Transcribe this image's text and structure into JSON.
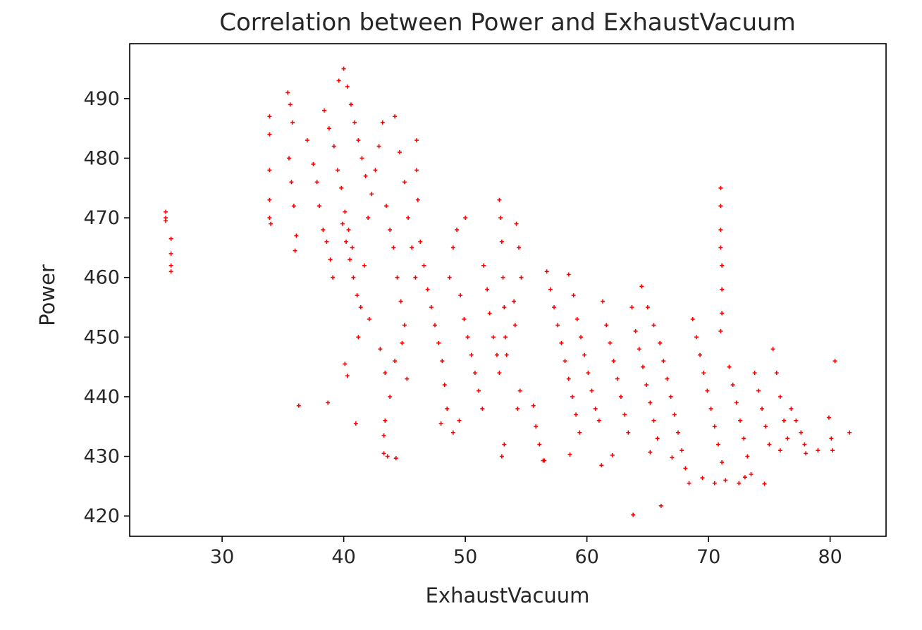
{
  "chart_data": {
    "type": "scatter",
    "title": "Correlation between Power and ExhaustVacuum",
    "xlabel": "ExhaustVacuum",
    "ylabel": "Power",
    "xlim": [
      22.4,
      84.6
    ],
    "ylim": [
      416.6,
      499.2
    ],
    "x_ticks": [
      30,
      40,
      50,
      60,
      70,
      80
    ],
    "y_ticks": [
      420,
      430,
      440,
      450,
      460,
      470,
      480,
      490
    ],
    "grid": false,
    "legend": "none",
    "marker": "+",
    "color": "#ff0000",
    "series": [
      {
        "points": [
          [
            25.36,
            471.0
          ],
          [
            25.36,
            470.0
          ],
          [
            25.36,
            469.5
          ],
          [
            25.8,
            466.5
          ],
          [
            25.8,
            464.0
          ],
          [
            25.8,
            462.0
          ],
          [
            25.8,
            461.0
          ],
          [
            33.9,
            487.0
          ],
          [
            33.9,
            484.0
          ],
          [
            33.9,
            478.0
          ],
          [
            33.9,
            473.0
          ],
          [
            33.9,
            470.0
          ],
          [
            34.0,
            469.0
          ],
          [
            35.4,
            491.0
          ],
          [
            35.6,
            489.0
          ],
          [
            35.8,
            486.0
          ],
          [
            35.5,
            480.0
          ],
          [
            35.7,
            476.0
          ],
          [
            35.9,
            472.0
          ],
          [
            36.1,
            467.0
          ],
          [
            36.0,
            464.5
          ],
          [
            36.3,
            438.5
          ],
          [
            38.7,
            439.0
          ],
          [
            37.0,
            483.0
          ],
          [
            37.5,
            479.0
          ],
          [
            37.8,
            476.0
          ],
          [
            38.0,
            472.0
          ],
          [
            38.3,
            468.0
          ],
          [
            38.6,
            466.0
          ],
          [
            38.9,
            463.0
          ],
          [
            39.1,
            460.0
          ],
          [
            38.4,
            488.0
          ],
          [
            38.8,
            485.0
          ],
          [
            39.2,
            482.0
          ],
          [
            39.5,
            478.0
          ],
          [
            39.8,
            475.0
          ],
          [
            40.1,
            471.0
          ],
          [
            40.4,
            468.0
          ],
          [
            40.7,
            465.0
          ],
          [
            39.6,
            493.0
          ],
          [
            40.0,
            495.0
          ],
          [
            40.3,
            492.0
          ],
          [
            40.6,
            489.0
          ],
          [
            40.9,
            486.0
          ],
          [
            41.2,
            483.0
          ],
          [
            41.5,
            480.0
          ],
          [
            41.8,
            477.0
          ],
          [
            39.9,
            469.0
          ],
          [
            40.2,
            466.0
          ],
          [
            40.5,
            463.0
          ],
          [
            40.8,
            460.0
          ],
          [
            41.1,
            457.0
          ],
          [
            41.4,
            455.0
          ],
          [
            41.7,
            462.0
          ],
          [
            42.0,
            470.0
          ],
          [
            42.3,
            474.0
          ],
          [
            42.6,
            478.0
          ],
          [
            42.9,
            482.0
          ],
          [
            43.2,
            486.0
          ],
          [
            43.5,
            472.0
          ],
          [
            43.8,
            468.0
          ],
          [
            44.1,
            465.0
          ],
          [
            44.4,
            460.0
          ],
          [
            44.7,
            456.0
          ],
          [
            45.0,
            452.0
          ],
          [
            44.2,
            487.0
          ],
          [
            44.6,
            481.0
          ],
          [
            45.0,
            476.0
          ],
          [
            45.3,
            470.0
          ],
          [
            45.6,
            465.0
          ],
          [
            45.9,
            460.0
          ],
          [
            40.1,
            445.5
          ],
          [
            40.3,
            443.5
          ],
          [
            41.2,
            450.0
          ],
          [
            42.1,
            453.0
          ],
          [
            43.0,
            448.0
          ],
          [
            43.4,
            444.0
          ],
          [
            43.8,
            440.0
          ],
          [
            44.2,
            446.0
          ],
          [
            44.8,
            449.0
          ],
          [
            45.2,
            443.0
          ],
          [
            41.0,
            435.5
          ],
          [
            43.3,
            430.5
          ],
          [
            43.6,
            430.0
          ],
          [
            44.3,
            429.7
          ],
          [
            43.3,
            433.5
          ],
          [
            43.4,
            436.0
          ],
          [
            46.0,
            483.0
          ],
          [
            46.0,
            478.0
          ],
          [
            46.1,
            473.0
          ],
          [
            46.3,
            466.0
          ],
          [
            46.6,
            462.0
          ],
          [
            46.9,
            458.0
          ],
          [
            47.2,
            455.0
          ],
          [
            47.5,
            452.0
          ],
          [
            47.8,
            449.0
          ],
          [
            48.1,
            446.0
          ],
          [
            48.3,
            442.0
          ],
          [
            48.5,
            438.0
          ],
          [
            48.0,
            435.5
          ],
          [
            48.7,
            460.0
          ],
          [
            49.0,
            465.0
          ],
          [
            49.3,
            468.0
          ],
          [
            49.6,
            457.0
          ],
          [
            49.9,
            453.0
          ],
          [
            50.2,
            450.0
          ],
          [
            50.5,
            447.0
          ],
          [
            50.8,
            444.0
          ],
          [
            51.1,
            441.0
          ],
          [
            51.4,
            438.0
          ],
          [
            49.0,
            434.0
          ],
          [
            49.5,
            436.0
          ],
          [
            50.0,
            470.0
          ],
          [
            51.5,
            462.0
          ],
          [
            51.8,
            458.0
          ],
          [
            52.0,
            454.0
          ],
          [
            52.3,
            450.0
          ],
          [
            52.6,
            447.0
          ],
          [
            52.8,
            444.0
          ],
          [
            52.8,
            473.0
          ],
          [
            52.9,
            470.0
          ],
          [
            53.0,
            466.0
          ],
          [
            53.1,
            460.0
          ],
          [
            53.2,
            455.0
          ],
          [
            53.3,
            450.0
          ],
          [
            53.4,
            447.0
          ],
          [
            54.2,
            469.0
          ],
          [
            54.4,
            465.0
          ],
          [
            54.6,
            460.0
          ],
          [
            54.0,
            456.0
          ],
          [
            54.1,
            452.0
          ],
          [
            53.2,
            432.0
          ],
          [
            53.0,
            430.0
          ],
          [
            54.5,
            441.0
          ],
          [
            54.3,
            438.0
          ],
          [
            55.6,
            438.5
          ],
          [
            55.8,
            435.0
          ],
          [
            56.1,
            432.0
          ],
          [
            56.4,
            429.3
          ],
          [
            56.7,
            461.0
          ],
          [
            57.0,
            458.0
          ],
          [
            57.3,
            455.0
          ],
          [
            57.6,
            452.0
          ],
          [
            57.9,
            449.0
          ],
          [
            58.2,
            446.0
          ],
          [
            58.5,
            443.0
          ],
          [
            58.8,
            440.0
          ],
          [
            59.1,
            437.0
          ],
          [
            59.4,
            434.0
          ],
          [
            58.5,
            460.5
          ],
          [
            58.9,
            457.0
          ],
          [
            59.2,
            453.0
          ],
          [
            59.5,
            450.0
          ],
          [
            59.8,
            447.0
          ],
          [
            60.1,
            444.0
          ],
          [
            60.4,
            441.0
          ],
          [
            60.7,
            438.0
          ],
          [
            61.0,
            436.0
          ],
          [
            61.3,
            456.0
          ],
          [
            61.6,
            452.0
          ],
          [
            61.9,
            449.0
          ],
          [
            62.2,
            446.0
          ],
          [
            62.5,
            443.0
          ],
          [
            62.8,
            440.0
          ],
          [
            63.1,
            437.0
          ],
          [
            63.4,
            434.0
          ],
          [
            63.7,
            455.0
          ],
          [
            64.0,
            451.0
          ],
          [
            64.3,
            448.0
          ],
          [
            64.6,
            445.0
          ],
          [
            64.9,
            442.0
          ],
          [
            65.2,
            439.0
          ],
          [
            65.5,
            436.0
          ],
          [
            65.8,
            433.0
          ],
          [
            64.5,
            458.5
          ],
          [
            65.0,
            455.0
          ],
          [
            65.5,
            452.0
          ],
          [
            66.0,
            449.0
          ],
          [
            66.3,
            446.0
          ],
          [
            66.6,
            443.0
          ],
          [
            66.9,
            440.0
          ],
          [
            67.2,
            437.0
          ],
          [
            67.5,
            434.0
          ],
          [
            67.8,
            431.0
          ],
          [
            68.1,
            428.0
          ],
          [
            68.4,
            425.5
          ],
          [
            68.7,
            453.0
          ],
          [
            69.0,
            450.0
          ],
          [
            69.3,
            447.0
          ],
          [
            69.6,
            444.0
          ],
          [
            69.9,
            441.0
          ],
          [
            70.2,
            438.0
          ],
          [
            70.5,
            435.0
          ],
          [
            70.8,
            432.0
          ],
          [
            71.1,
            429.0
          ],
          [
            71.4,
            426.0
          ],
          [
            71.7,
            445.0
          ],
          [
            72.0,
            442.0
          ],
          [
            72.3,
            439.0
          ],
          [
            72.6,
            436.0
          ],
          [
            72.9,
            433.0
          ],
          [
            73.2,
            430.0
          ],
          [
            73.5,
            427.0
          ],
          [
            73.8,
            444.0
          ],
          [
            74.1,
            441.0
          ],
          [
            74.4,
            438.0
          ],
          [
            74.7,
            435.0
          ],
          [
            75.0,
            432.0
          ],
          [
            75.3,
            448.0
          ],
          [
            75.6,
            444.0
          ],
          [
            75.9,
            440.0
          ],
          [
            76.2,
            436.0
          ],
          [
            76.5,
            433.0
          ],
          [
            76.8,
            438.0
          ],
          [
            77.2,
            436.0
          ],
          [
            77.6,
            434.0
          ],
          [
            77.9,
            432.0
          ],
          [
            78.0,
            430.5
          ],
          [
            79.0,
            431.0
          ],
          [
            79.9,
            436.5
          ],
          [
            80.1,
            433.0
          ],
          [
            80.2,
            431.0
          ],
          [
            80.4,
            446.0
          ],
          [
            81.6,
            434.0
          ],
          [
            71.0,
            475.0
          ],
          [
            71.0,
            472.0
          ],
          [
            71.0,
            468.0
          ],
          [
            71.0,
            465.0
          ],
          [
            71.1,
            462.0
          ],
          [
            71.1,
            458.0
          ],
          [
            71.1,
            454.0
          ],
          [
            71.0,
            451.0
          ],
          [
            63.8,
            420.2
          ],
          [
            66.1,
            421.7
          ],
          [
            58.6,
            430.3
          ],
          [
            61.2,
            428.5
          ],
          [
            62.1,
            430.2
          ],
          [
            56.5,
            429.3
          ],
          [
            65.2,
            430.7
          ],
          [
            67.0,
            429.8
          ],
          [
            69.5,
            426.4
          ],
          [
            70.5,
            425.5
          ],
          [
            72.5,
            425.5
          ],
          [
            74.6,
            425.4
          ],
          [
            73.0,
            426.5
          ],
          [
            75.9,
            431.0
          ]
        ]
      }
    ]
  }
}
